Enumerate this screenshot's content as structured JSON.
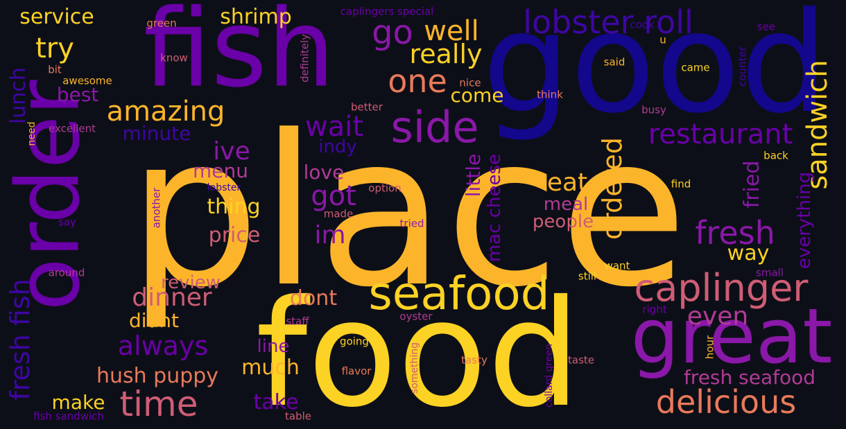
{
  "palette": {
    "background": "#0d0f18",
    "yellow": "#fcd225",
    "orange": "#fcb52b",
    "salmon": "#e97a5a",
    "rose": "#cf5d75",
    "magenta": "#b13b96",
    "purple": "#8a18a8",
    "violet": "#6a00a8",
    "indigo": "#3e06a4",
    "navy": "#13078c"
  },
  "words": [
    {
      "text": "place",
      "color": "#fcb52b"
    },
    {
      "text": "food",
      "color": "#fcd225"
    },
    {
      "text": "good",
      "color": "#13078c"
    },
    {
      "text": "fish",
      "color": "#6a00a8"
    },
    {
      "text": "order",
      "color": "#6a00a8"
    },
    {
      "text": "great",
      "color": "#8a18a8"
    },
    {
      "text": "seafood",
      "color": "#fcd225"
    },
    {
      "text": "side",
      "color": "#8a18a8"
    },
    {
      "text": "caplinger",
      "color": "#cf5d75"
    },
    {
      "text": "delicious",
      "color": "#e97a5a"
    },
    {
      "text": "lobster roll",
      "color": "#3e06a4"
    },
    {
      "text": "sandwich",
      "color": "#fcd225"
    },
    {
      "text": "restaurant",
      "color": "#6a00a8"
    },
    {
      "text": "fresh",
      "color": "#8a18a8"
    },
    {
      "text": "time",
      "color": "#cf5d75"
    },
    {
      "text": "amazing",
      "color": "#fcb52b"
    },
    {
      "text": "ordered",
      "color": "#fcb52b"
    },
    {
      "text": "one",
      "color": "#e97a5a"
    },
    {
      "text": "really",
      "color": "#fcd225"
    },
    {
      "text": "well",
      "color": "#fcb52b"
    },
    {
      "text": "go",
      "color": "#8a18a8"
    },
    {
      "text": "try",
      "color": "#fcd225"
    },
    {
      "text": "wait",
      "color": "#6a00a8"
    },
    {
      "text": "got",
      "color": "#8a18a8"
    },
    {
      "text": "fresh fish",
      "color": "#3e06a4"
    },
    {
      "text": "always",
      "color": "#6a00a8"
    },
    {
      "text": "dinner",
      "color": "#cf5d75"
    },
    {
      "text": "hush puppy",
      "color": "#e97a5a"
    },
    {
      "text": "fresh seafood",
      "color": "#b13b96"
    },
    {
      "text": "even",
      "color": "#b13b96"
    },
    {
      "text": "eat",
      "color": "#fcb52b"
    },
    {
      "text": "ive",
      "color": "#8a18a8"
    },
    {
      "text": "shrimp",
      "color": "#fcd225"
    },
    {
      "text": "service",
      "color": "#fcd225"
    },
    {
      "text": "im",
      "color": "#8a18a8"
    },
    {
      "text": "thing",
      "color": "#fcd225"
    },
    {
      "text": "price",
      "color": "#cf5d75"
    },
    {
      "text": "much",
      "color": "#fcb52b"
    },
    {
      "text": "take",
      "color": "#6a00a8"
    },
    {
      "text": "make",
      "color": "#fcd225"
    },
    {
      "text": "dont",
      "color": "#e97a5a"
    },
    {
      "text": "didnt",
      "color": "#fcb52b"
    },
    {
      "text": "review",
      "color": "#cf5d75"
    },
    {
      "text": "best",
      "color": "#8a18a8"
    },
    {
      "text": "come",
      "color": "#fcd225"
    },
    {
      "text": "minute",
      "color": "#3e06a4"
    },
    {
      "text": "lunch",
      "color": "#3e06a4"
    },
    {
      "text": "love",
      "color": "#b13b96"
    },
    {
      "text": "menu",
      "color": "#b13b96"
    },
    {
      "text": "indy",
      "color": "#3e06a4"
    },
    {
      "text": "meal",
      "color": "#b13b96"
    },
    {
      "text": "people",
      "color": "#cf5d75"
    },
    {
      "text": "little",
      "color": "#8a18a8"
    },
    {
      "text": "mac cheese",
      "color": "#6a00a8"
    },
    {
      "text": "fried",
      "color": "#8a18a8"
    },
    {
      "text": "way",
      "color": "#fcd225"
    },
    {
      "text": "everything",
      "color": "#6a00a8"
    },
    {
      "text": "line",
      "color": "#8a18a8"
    },
    {
      "text": "caplingers special",
      "color": "#6a00a8"
    },
    {
      "text": "green",
      "color": "#e97a5a"
    },
    {
      "text": "cook",
      "color": "#3e06a4"
    },
    {
      "text": "see",
      "color": "#6a00a8"
    },
    {
      "text": "u",
      "color": "#fcb52b"
    },
    {
      "text": "know",
      "color": "#cf5d75"
    },
    {
      "text": "bit",
      "color": "#e97a5a"
    },
    {
      "text": "awesome",
      "color": "#fcb52b"
    },
    {
      "text": "definitely",
      "color": "#b13b96"
    },
    {
      "text": "said",
      "color": "#fcb52b"
    },
    {
      "text": "came",
      "color": "#fcd225"
    },
    {
      "text": "counter",
      "color": "#3e06a4"
    },
    {
      "text": "nice",
      "color": "#e97a5a"
    },
    {
      "text": "think",
      "color": "#e97a5a"
    },
    {
      "text": "better",
      "color": "#cf5d75"
    },
    {
      "text": "busy",
      "color": "#b13b96"
    },
    {
      "text": "need",
      "color": "#fcb52b"
    },
    {
      "text": "excellent",
      "color": "#b13b96"
    },
    {
      "text": "back",
      "color": "#fcd225"
    },
    {
      "text": "lobster",
      "color": "#3e06a4"
    },
    {
      "text": "option",
      "color": "#cf5d75"
    },
    {
      "text": "find",
      "color": "#fcd225"
    },
    {
      "text": "another",
      "color": "#8a18a8"
    },
    {
      "text": "say",
      "color": "#6a00a8"
    },
    {
      "text": "made",
      "color": "#cf5d75"
    },
    {
      "text": "tried",
      "color": "#8a18a8"
    },
    {
      "text": "want",
      "color": "#fcd225"
    },
    {
      "text": "around",
      "color": "#b13b96"
    },
    {
      "text": "still",
      "color": "#fcd225"
    },
    {
      "text": "small",
      "color": "#8a18a8"
    },
    {
      "text": "right",
      "color": "#6a00a8"
    },
    {
      "text": "staff",
      "color": "#b13b96"
    },
    {
      "text": "oyster",
      "color": "#b13b96"
    },
    {
      "text": "going",
      "color": "#fcd225"
    },
    {
      "text": "hour",
      "color": "#fcb52b"
    },
    {
      "text": "something",
      "color": "#cf5d75"
    },
    {
      "text": "flavor",
      "color": "#e97a5a"
    },
    {
      "text": "tasty",
      "color": "#e97a5a"
    },
    {
      "text": "collard green",
      "color": "#6a00a8"
    },
    {
      "text": "taste",
      "color": "#cf5d75"
    },
    {
      "text": "fish sandwich",
      "color": "#6a00a8"
    },
    {
      "text": "table",
      "color": "#cf5d75"
    }
  ]
}
